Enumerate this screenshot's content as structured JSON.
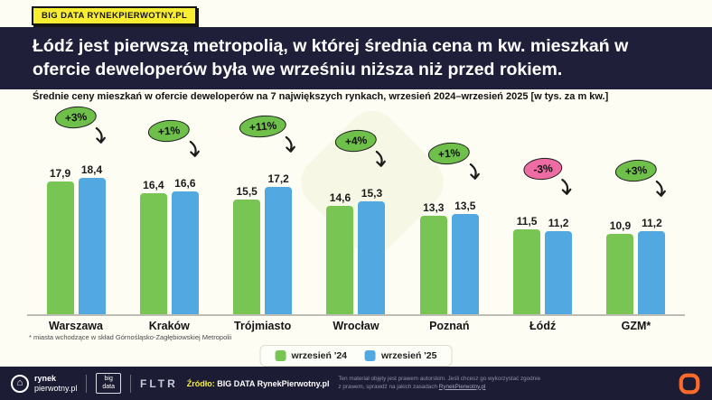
{
  "top_badge": "BIG DATA RYNEKPIERWOTNY.PL",
  "headline": "Łódź jest pierwszą metropolią, w której średnia cena m kw. mieszkań w ofercie deweloperów była we wrześniu niższa niż przed rokiem.",
  "subtitle": "Średnie ceny mieszkań w ofercie deweloperów na 7 największych rynkach, wrzesień 2024–wrzesień 2025 [w tys. za m kw.]",
  "chart_data": {
    "type": "bar",
    "categories": [
      "Warszawa",
      "Kraków",
      "Trójmiasto",
      "Wrocław",
      "Poznań",
      "Łódź",
      "GZM*"
    ],
    "series": [
      {
        "name": "wrzesień '24",
        "color": "#79c553",
        "values": [
          17.9,
          16.4,
          15.5,
          14.6,
          13.3,
          11.5,
          10.9
        ]
      },
      {
        "name": "wrzesień '25",
        "color": "#52a8e0",
        "values": [
          18.4,
          16.6,
          17.2,
          15.3,
          13.5,
          11.2,
          11.2
        ]
      }
    ],
    "value_labels": [
      [
        "17,9",
        "18,4"
      ],
      [
        "16,4",
        "16,6"
      ],
      [
        "15,5",
        "17,2"
      ],
      [
        "14,6",
        "15,3"
      ],
      [
        "13,3",
        "13,5"
      ],
      [
        "11,5",
        "11,2"
      ],
      [
        "10,9",
        "11,2"
      ]
    ],
    "changes": [
      {
        "label": "+3%",
        "color": "#6fc04b"
      },
      {
        "label": "+1%",
        "color": "#6fc04b"
      },
      {
        "label": "+11%",
        "color": "#6fc04b"
      },
      {
        "label": "+4%",
        "color": "#6fc04b"
      },
      {
        "label": "+1%",
        "color": "#6fc04b"
      },
      {
        "label": "-3%",
        "color": "#ee6ba3"
      },
      {
        "label": "+3%",
        "color": "#6fc04b"
      }
    ],
    "title": "Średnie ceny mieszkań w ofercie deweloperów na 7 największych rynkach, wrzesień 2024–wrzesień 2025 [w tys. za m kw.]",
    "xlabel": "",
    "ylabel": "",
    "ylim": [
      0,
      19
    ],
    "grid": false,
    "legend_position": "bottom"
  },
  "footnote": "* miasta wchodzące w skład Górnośląsko-Zagłębiowskiej Metropolii",
  "legend": {
    "items": [
      {
        "label": "wrzesień '24",
        "color": "#79c553"
      },
      {
        "label": "wrzesień '25",
        "color": "#52a8e0"
      }
    ]
  },
  "footer": {
    "brand_top": "rynek",
    "brand_bottom": "pierwotny.pl",
    "bigdata_line1": "big",
    "bigdata_line2": "data",
    "fltr": "FLTR",
    "source_label": "Źródło:",
    "source_value": "BIG DATA RynekPierwotny.pl",
    "disclaimer": "Ten materiał objęty jest prawem autorskim. Jeśli chcesz go wykorzystać zgodnie z prawem, sprawdź na jakich zasadach",
    "disclaimer_link": "RynekPierwotny.pl"
  }
}
